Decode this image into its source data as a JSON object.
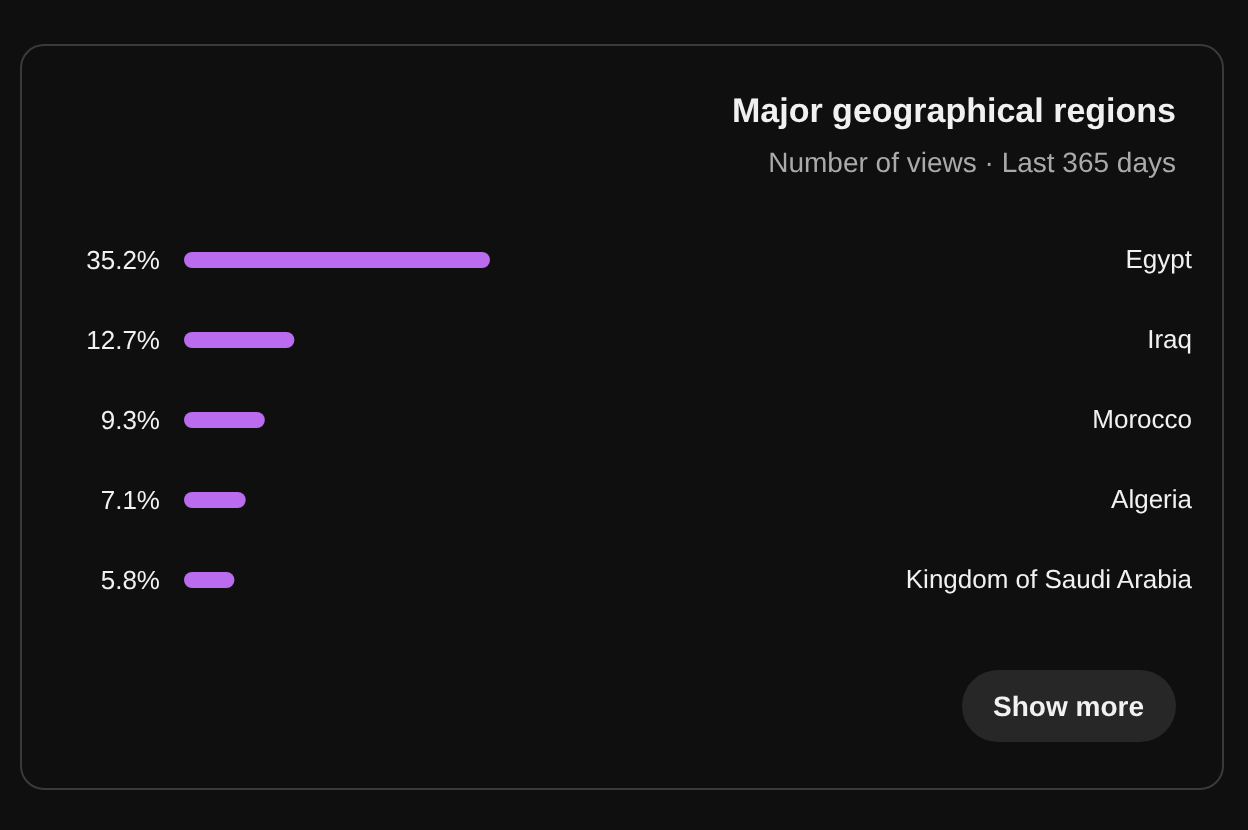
{
  "chart_data": {
    "type": "bar",
    "orientation": "horizontal",
    "title": "Major geographical regions",
    "subtitle": "Number of views · Last 365 days",
    "categories": [
      "Egypt",
      "Iraq",
      "Morocco",
      "Algeria",
      "Kingdom of Saudi Arabia"
    ],
    "values": [
      35.2,
      12.7,
      9.3,
      7.1,
      5.8
    ],
    "value_labels": [
      "35.2%",
      "12.7%",
      "9.3%",
      "7.1%",
      "5.8%"
    ],
    "color": "#bb6bee",
    "annotations": [
      "Show more"
    ]
  }
}
